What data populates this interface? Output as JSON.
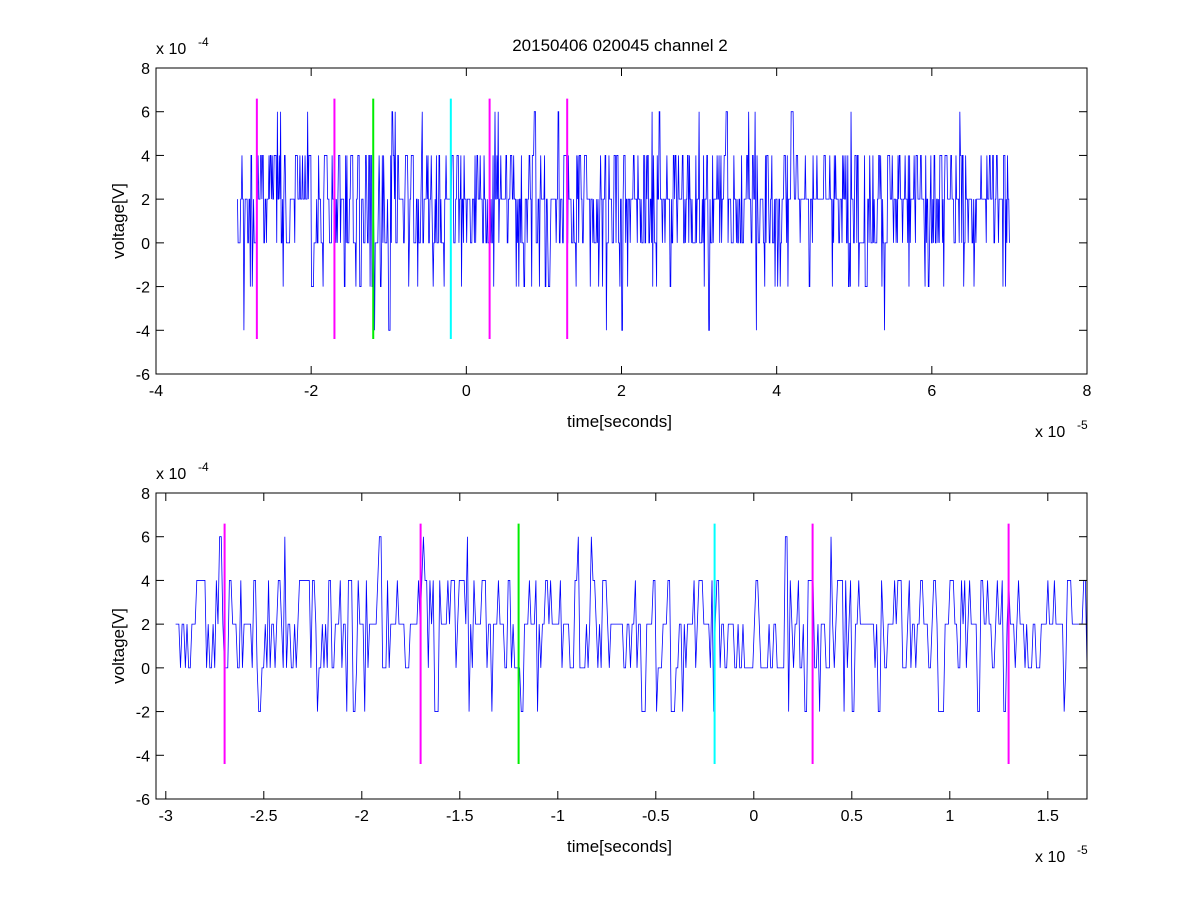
{
  "title": "20150406 020045 channel 2",
  "colors": {
    "trace": "#0000ff",
    "magenta": "#ff00ff",
    "green": "#00ee00",
    "cyan": "#00ffff",
    "axis": "#000000"
  },
  "chart_data": [
    {
      "type": "line",
      "title": "20150406 020045 channel 2",
      "xlabel": "time[seconds]",
      "ylabel": "voltage[V]",
      "xlim": [
        -4e-05,
        8e-05
      ],
      "ylim": [
        -0.0006,
        0.0008
      ],
      "x_exponent_label": "x 10",
      "x_exponent": "-5",
      "y_exponent_label": "x 10",
      "y_exponent": "-4",
      "x_ticks": [
        -4e-05,
        -2e-05,
        0,
        2e-05,
        4e-05,
        6e-05,
        8e-05
      ],
      "x_tick_labels": [
        "-4",
        "-2",
        "0",
        "2",
        "4",
        "6",
        "8"
      ],
      "y_ticks": [
        -0.0006,
        -0.0004,
        -0.0002,
        0,
        0.0002,
        0.0004,
        0.0006,
        0.0008
      ],
      "y_tick_labels": [
        "-6",
        "-4",
        "-2",
        "0",
        "2",
        "4",
        "6",
        "8"
      ],
      "grid": false,
      "signal": {
        "x_start": -2.95e-05,
        "x_end": 7e-05,
        "levels": [
          -0.0004,
          -0.0002,
          0,
          0.0002,
          0.0004,
          0.0006
        ],
        "dominant_level": 0.0002
      },
      "markers": [
        {
          "x": -2.7e-05,
          "ymin": -0.00044,
          "ymax": 0.00066,
          "color": "magenta"
        },
        {
          "x": -1.7e-05,
          "ymin": -0.00044,
          "ymax": 0.00066,
          "color": "magenta"
        },
        {
          "x": -1.2e-05,
          "ymin": -0.00044,
          "ymax": 0.00066,
          "color": "green"
        },
        {
          "x": -2e-06,
          "ymin": -0.00044,
          "ymax": 0.00066,
          "color": "cyan"
        },
        {
          "x": 3e-06,
          "ymin": -0.00044,
          "ymax": 0.00066,
          "color": "magenta"
        },
        {
          "x": 1.3e-05,
          "ymin": -0.00044,
          "ymax": 0.00066,
          "color": "magenta"
        }
      ]
    },
    {
      "type": "line",
      "xlabel": "time[seconds]",
      "ylabel": "voltage[V]",
      "xlim": [
        -3.05e-05,
        1.7e-05
      ],
      "ylim": [
        -0.0006,
        0.0008
      ],
      "x_exponent_label": "x 10",
      "x_exponent": "-5",
      "y_exponent_label": "x 10",
      "y_exponent": "-4",
      "x_ticks": [
        -3e-05,
        -2.5e-05,
        -2e-05,
        -1.5e-05,
        -1e-05,
        -5e-06,
        0,
        5e-06,
        1e-05,
        1.5e-05
      ],
      "x_tick_labels": [
        "-3",
        "-2.5",
        "-2",
        "-1.5",
        "-1",
        "-0.5",
        "0",
        "0.5",
        "1",
        "1.5"
      ],
      "y_ticks": [
        -0.0006,
        -0.0004,
        -0.0002,
        0,
        0.0002,
        0.0004,
        0.0006,
        0.0008
      ],
      "y_tick_labels": [
        "-6",
        "-4",
        "-2",
        "0",
        "2",
        "4",
        "6",
        "8"
      ],
      "grid": false,
      "signal": {
        "x_start": -2.95e-05,
        "x_end": 1.7e-05,
        "levels": [
          -0.0002,
          0,
          0.0002,
          0.0004,
          0.0006
        ],
        "dominant_level": 0.0002
      },
      "markers": [
        {
          "x": -2.7e-05,
          "ymin": -0.00044,
          "ymax": 0.00066,
          "color": "magenta"
        },
        {
          "x": -1.7e-05,
          "ymin": -0.00044,
          "ymax": 0.00066,
          "color": "magenta"
        },
        {
          "x": -1.2e-05,
          "ymin": -0.00044,
          "ymax": 0.00066,
          "color": "green"
        },
        {
          "x": -2e-06,
          "ymin": -0.00044,
          "ymax": 0.00066,
          "color": "cyan"
        },
        {
          "x": 3e-06,
          "ymin": -0.00044,
          "ymax": 0.00066,
          "color": "magenta"
        },
        {
          "x": 1.3e-05,
          "ymin": -0.00044,
          "ymax": 0.00066,
          "color": "magenta"
        }
      ]
    }
  ]
}
